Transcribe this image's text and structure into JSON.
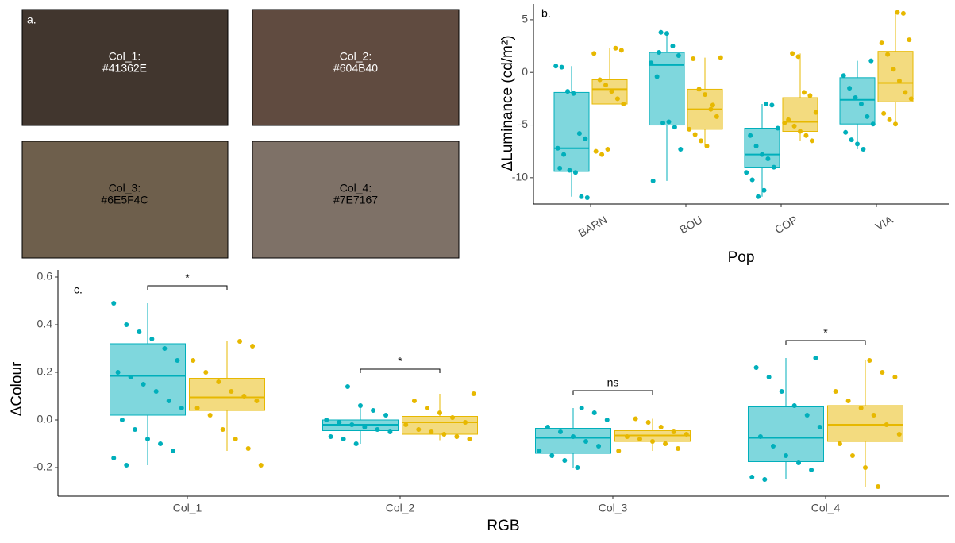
{
  "panel_a": {
    "label": "a.",
    "swatches": [
      {
        "name": "Col_1:",
        "hex": "#41362E"
      },
      {
        "name": "Col_2:",
        "hex": "#604B40"
      },
      {
        "name": "Col_3:",
        "hex": "#6E5F4C"
      },
      {
        "name": "Col_4:",
        "hex": "#7E7167"
      }
    ]
  },
  "chart_data": [
    {
      "type": "box",
      "panel_label": "b.",
      "y_label": "ΔLuminance (cd/m²)",
      "x_label": "Pop",
      "categories": [
        "BARN",
        "BOU",
        "COP",
        "VIA"
      ],
      "ylim": [
        -12.5,
        6.5
      ],
      "yticks": [
        -10,
        -5,
        0,
        5
      ],
      "series": [
        {
          "color": "#00AFBB",
          "boxes": [
            {
              "low": -11.8,
              "q1": -9.4,
              "median": -7.2,
              "q3": -1.9,
              "high": 0.6,
              "points": [
                0.6,
                0.5,
                -1.8,
                -2,
                -5.8,
                -6.3,
                -7.2,
                -7.8,
                -9.3,
                -9.5,
                -11.8,
                -11.9,
                -9.1
              ]
            },
            {
              "low": -10.3,
              "q1": -5,
              "median": 0.7,
              "q3": 1.9,
              "high": 3.8,
              "points": [
                3.8,
                3.7,
                2.5,
                1.6,
                0.9,
                -0.4,
                -4.8,
                -4.7,
                -5.2,
                -7.3,
                -10.3,
                1.9
              ]
            },
            {
              "low": -11.8,
              "q1": -9,
              "median": -7.8,
              "q3": -5.3,
              "high": -3,
              "points": [
                -3,
                -3.1,
                -5.3,
                -6,
                -7,
                -7.8,
                -8.2,
                -9,
                -9.5,
                -10.2,
                -11.8,
                -11.2
              ]
            },
            {
              "low": -7.3,
              "q1": -4.9,
              "median": -2.6,
              "q3": -0.5,
              "high": 1.1,
              "points": [
                1.1,
                -0.3,
                -1.5,
                -2.4,
                -3,
                -4.2,
                -4.9,
                -5.7,
                -6.4,
                -6.8,
                -7.3
              ]
            }
          ]
        },
        {
          "color": "#E7B800",
          "boxes": [
            {
              "low": -3,
              "q1": -3,
              "median": -1.6,
              "q3": -0.7,
              "high": 2.3,
              "points": [
                2.3,
                2.1,
                1.8,
                -0.7,
                -1.2,
                -1.8,
                -2.5,
                -3,
                -7.5,
                -7.8,
                -7.3
              ]
            },
            {
              "low": -7,
              "q1": -5.4,
              "median": -3.5,
              "q3": -1.6,
              "high": 1.4,
              "points": [
                1.4,
                1.3,
                -1.6,
                -2.1,
                -3.5,
                -4.2,
                -5.4,
                -5.9,
                -6.5,
                -7,
                -3.1
              ]
            },
            {
              "low": -6.5,
              "q1": -5.6,
              "median": -4.7,
              "q3": -2.4,
              "high": 1.8,
              "points": [
                1.8,
                1.5,
                -1.9,
                -2.2,
                -3.8,
                -4.5,
                -5.1,
                -5.6,
                -6,
                -6.5,
                -4.8
              ]
            },
            {
              "low": -4.9,
              "q1": -2.8,
              "median": -1,
              "q3": 2,
              "high": 5.7,
              "points": [
                5.7,
                5.6,
                3.1,
                2.8,
                1.7,
                0.3,
                -0.8,
                -1.9,
                -2.5,
                -3.9,
                -4.5,
                -4.9
              ]
            }
          ]
        }
      ]
    },
    {
      "type": "box",
      "panel_label": "c.",
      "y_label": "ΔColour",
      "x_label": "RGB",
      "categories": [
        "Col_1",
        "Col_2",
        "Col_3",
        "Col_4"
      ],
      "annotations": [
        "*",
        "*",
        "ns",
        "*"
      ],
      "ylim": [
        -0.32,
        0.63
      ],
      "yticks": [
        -0.2,
        {
          "value": 0,
          "label": "0.0"
        },
        0.2,
        0.4,
        0.6
      ],
      "series": [
        {
          "color": "#00AFBB",
          "boxes": [
            {
              "low": -0.19,
              "q1": 0.02,
              "median": 0.185,
              "q3": 0.32,
              "high": 0.49,
              "points": [
                0.49,
                0.4,
                0.37,
                0.34,
                0.3,
                0.25,
                0.2,
                0.18,
                0.15,
                0.12,
                0.08,
                0.05,
                0.0,
                -0.04,
                -0.08,
                -0.1,
                -0.13,
                -0.16,
                -0.19
              ]
            },
            {
              "low": -0.1,
              "q1": -0.045,
              "median": -0.02,
              "q3": 0.0,
              "high": 0.06,
              "points": [
                0.14,
                0.06,
                0.04,
                0.02,
                0.0,
                -0.01,
                -0.02,
                -0.03,
                -0.04,
                -0.05,
                -0.07,
                -0.08,
                -0.1
              ]
            },
            {
              "low": -0.2,
              "q1": -0.14,
              "median": -0.075,
              "q3": -0.035,
              "high": 0.05,
              "points": [
                0.05,
                0.03,
                0.0,
                -0.03,
                -0.05,
                -0.07,
                -0.09,
                -0.11,
                -0.13,
                -0.15,
                -0.17,
                -0.2
              ]
            },
            {
              "low": -0.25,
              "q1": -0.175,
              "median": -0.075,
              "q3": 0.055,
              "high": 0.26,
              "points": [
                0.26,
                0.22,
                0.18,
                0.12,
                0.06,
                0.02,
                -0.03,
                -0.07,
                -0.11,
                -0.15,
                -0.18,
                -0.21,
                -0.24,
                -0.25
              ]
            }
          ]
        },
        {
          "color": "#E7B800",
          "boxes": [
            {
              "low": -0.13,
              "q1": 0.04,
              "median": 0.095,
              "q3": 0.175,
              "high": 0.33,
              "points": [
                0.33,
                0.31,
                0.25,
                0.2,
                0.16,
                0.12,
                0.1,
                0.08,
                0.05,
                0.02,
                -0.04,
                -0.08,
                -0.12,
                -0.19
              ]
            },
            {
              "low": -0.085,
              "q1": -0.06,
              "median": -0.01,
              "q3": 0.015,
              "high": 0.11,
              "points": [
                0.11,
                0.08,
                0.05,
                0.03,
                0.01,
                -0.01,
                -0.02,
                -0.04,
                -0.05,
                -0.06,
                -0.07,
                -0.08
              ]
            },
            {
              "low": -0.13,
              "q1": -0.09,
              "median": -0.065,
              "q3": -0.045,
              "high": 0.005,
              "points": [
                0.005,
                -0.01,
                -0.03,
                -0.05,
                -0.06,
                -0.07,
                -0.08,
                -0.09,
                -0.1,
                -0.12,
                -0.13
              ]
            },
            {
              "low": -0.28,
              "q1": -0.09,
              "median": -0.02,
              "q3": 0.06,
              "high": 0.25,
              "points": [
                0.25,
                0.2,
                0.18,
                0.12,
                0.08,
                0.05,
                0.02,
                -0.02,
                -0.06,
                -0.1,
                -0.15,
                -0.2,
                -0.28
              ]
            }
          ]
        }
      ]
    }
  ]
}
